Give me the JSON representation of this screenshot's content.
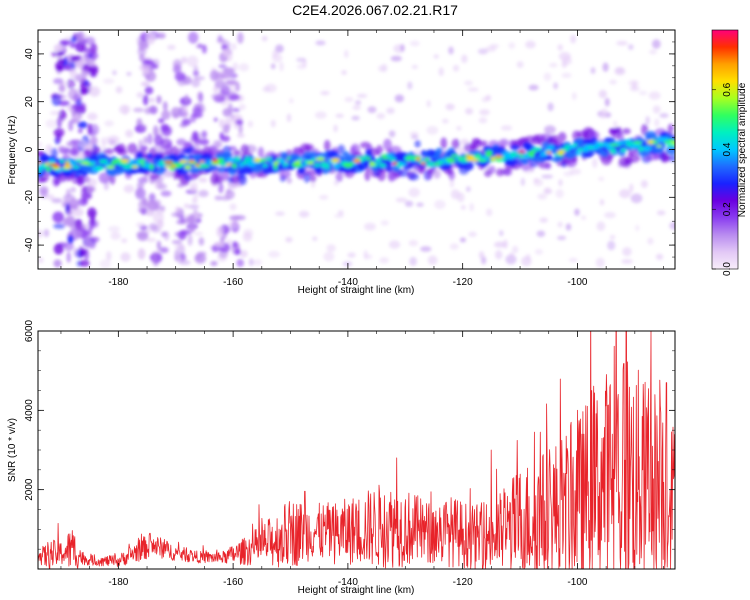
{
  "title": "C2E4.2026.067.02.21.R17",
  "colors": {
    "snr_line": "#e8232a",
    "colormap": [
      "#f8eefa",
      "#e2c8f6",
      "#b98cf0",
      "#8a3df0",
      "#6a00e0",
      "#1a22ff",
      "#1f6bff",
      "#00c8ff",
      "#00f0c0",
      "#30ff60",
      "#a8ff20",
      "#ffe000",
      "#ffa000",
      "#ff3000",
      "#ff007a"
    ]
  },
  "chart_data": [
    {
      "type": "heatmap",
      "title": "",
      "xlabel": "Height of straight line (km)",
      "ylabel": "Frequency (Hz)",
      "xlim": [
        -194,
        -83
      ],
      "ylim": [
        -50,
        50
      ],
      "x_ticks": [
        "-180",
        "-160",
        "-140",
        "-120",
        "-100"
      ],
      "x_tick_values": [
        -180,
        -160,
        -140,
        -120,
        -100
      ],
      "y_ticks": [
        "-40",
        "-20",
        "0",
        "20",
        "40"
      ],
      "y_tick_values": [
        -40,
        -20,
        0,
        20,
        40
      ],
      "ridge": {
        "description_points_x": [
          -194,
          -180,
          -160,
          -140,
          -120,
          -100,
          -84
        ],
        "center_freq_hz": [
          -7,
          -6,
          -6,
          -5,
          -4,
          0,
          3
        ],
        "half_width_hz": 5
      },
      "clutter_columns_km": [
        -187.5,
        -174,
        -167.5,
        -161
      ],
      "colorbar": {
        "label": "Normalized spectral amplitude",
        "range": [
          0.0,
          0.8
        ],
        "ticks": [
          "0.0",
          "0.2",
          "0.4",
          "0.6"
        ],
        "tick_values": [
          0.0,
          0.2,
          0.4,
          0.6
        ]
      }
    },
    {
      "type": "line",
      "title": "",
      "xlabel": "Height of straight line (km)",
      "ylabel": "SNR (10 * v/v)",
      "xlim": [
        -194,
        -83
      ],
      "ylim": [
        0,
        6000
      ],
      "x_ticks": [
        "-180",
        "-160",
        "-140",
        "-120",
        "-100"
      ],
      "x_tick_values": [
        -180,
        -160,
        -140,
        -120,
        -100
      ],
      "y_ticks": [
        "2000",
        "4000",
        "6000"
      ],
      "y_tick_values": [
        2000,
        4000,
        6000
      ],
      "series": [
        {
          "name": "SNR",
          "envelope_x": [
            -194,
            -192,
            -190,
            -188,
            -186,
            -184,
            -180,
            -176,
            -174,
            -170,
            -166,
            -162,
            -158,
            -154,
            -150,
            -146,
            -142,
            -138,
            -134,
            -130,
            -126,
            -122,
            -118,
            -114,
            -110,
            -106,
            -102,
            -100,
            -98,
            -96,
            -94,
            -92,
            -90,
            -88,
            -86,
            -84,
            -83
          ],
          "envelope_mean": [
            300,
            350,
            400,
            500,
            250,
            200,
            200,
            500,
            600,
            400,
            300,
            280,
            450,
            650,
            900,
            950,
            900,
            1000,
            1100,
            1050,
            900,
            950,
            800,
            850,
            1200,
            1300,
            1500,
            1700,
            2000,
            2200,
            2300,
            2500,
            2300,
            2200,
            2100,
            1900,
            1900
          ],
          "envelope_amp": [
            150,
            400,
            300,
            600,
            150,
            120,
            150,
            300,
            300,
            200,
            150,
            150,
            350,
            600,
            900,
            700,
            800,
            900,
            1100,
            1000,
            800,
            900,
            800,
            1000,
            1400,
            1700,
            2000,
            2100,
            2400,
            2600,
            3000,
            3400,
            2900,
            2600,
            2500,
            2000,
            1800
          ],
          "peaks": [
            {
              "x": -190.5,
              "y": 1150
            },
            {
              "x": -174.5,
              "y": 900
            },
            {
              "x": -147.5,
              "y": 1960
            },
            {
              "x": -131.5,
              "y": 2800
            },
            {
              "x": -115.0,
              "y": 3000
            },
            {
              "x": -106.5,
              "y": 3450
            },
            {
              "x": -100.0,
              "y": 4000
            },
            {
              "x": -97.5,
              "y": 4500
            },
            {
              "x": -93.0,
              "y": 4250
            },
            {
              "x": -91.5,
              "y": 6000
            },
            {
              "x": -87.2,
              "y": 6000
            },
            {
              "x": -84.5,
              "y": 4700
            }
          ]
        }
      ]
    }
  ]
}
